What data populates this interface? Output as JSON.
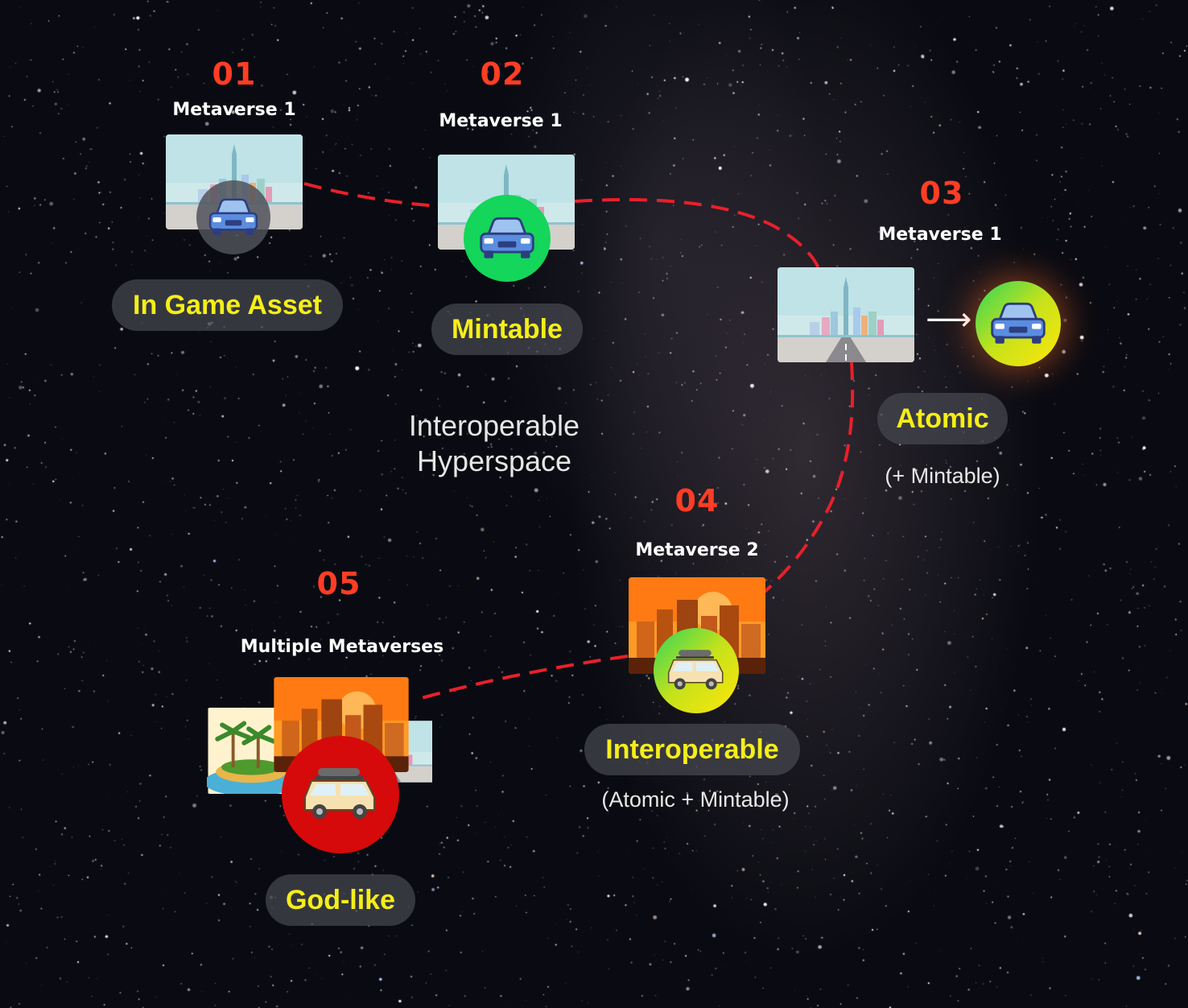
{
  "center_label": {
    "line1": "Interoperable",
    "line2": "Hyperspace"
  },
  "stages": [
    {
      "number": "01",
      "metaverse": "Metaverse 1",
      "label": "In Game Asset",
      "sub": ""
    },
    {
      "number": "02",
      "metaverse": "Metaverse 1",
      "label": "Mintable",
      "sub": ""
    },
    {
      "number": "03",
      "metaverse": "Metaverse 1",
      "label": "Atomic",
      "sub": "(+ Mintable)"
    },
    {
      "number": "04",
      "metaverse": "Metaverse 2",
      "label": "Interoperable",
      "sub": "(Atomic + Mintable)"
    },
    {
      "number": "05",
      "metaverse": "Multiple Metaverses",
      "label": "God-like",
      "sub": ""
    }
  ],
  "arrow": "⟶",
  "icons": [
    "city-card-icon",
    "sunset-city-card-icon",
    "island-card-icon",
    "blue-car-icon",
    "suv-car-icon"
  ],
  "colors": {
    "number": "#ff3d24",
    "label": "#f5ee19",
    "path": "#e8202a",
    "mintable_badge": "#13d65a",
    "godlike_badge": "#d60a0a"
  }
}
